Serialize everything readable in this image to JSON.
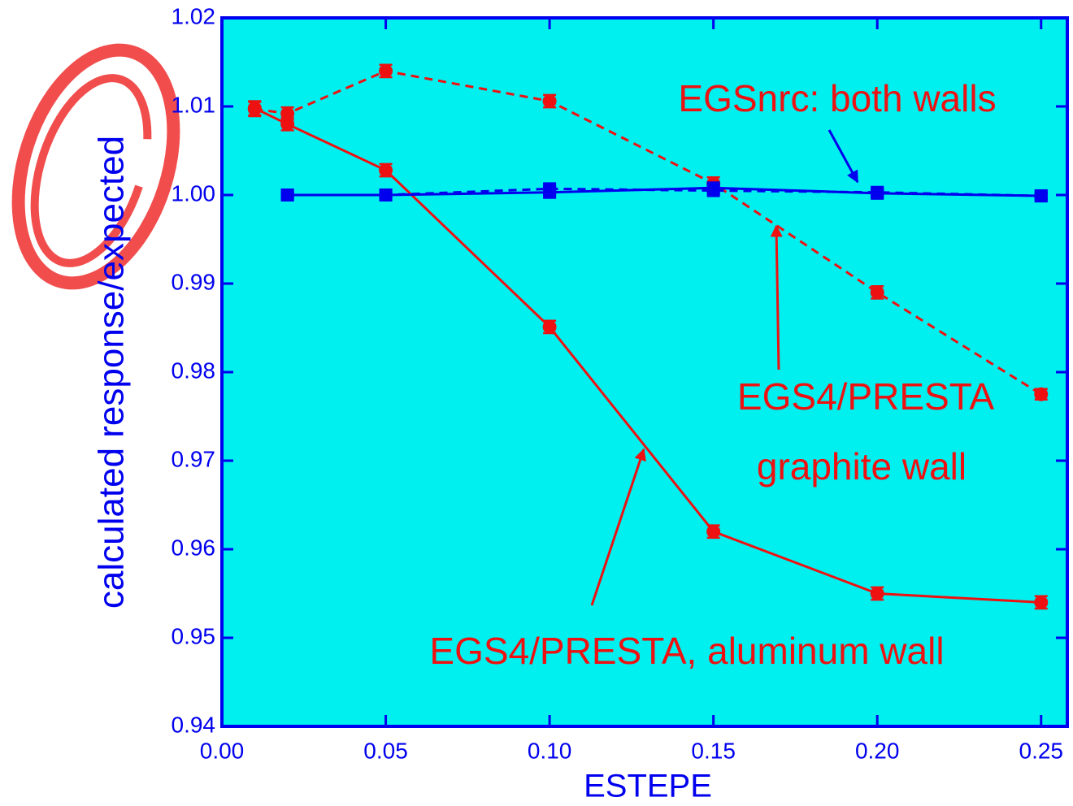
{
  "chart_data": {
    "type": "line",
    "x_label": "ESTEPE",
    "y_label": "calculated response/expected",
    "xlim": [
      0,
      0.258
    ],
    "ylim": [
      0.94,
      1.02
    ],
    "xticks": [
      {
        "value": 0,
        "label": "0.00"
      },
      0.05,
      {
        "value": 0.1,
        "label": "0.10"
      },
      0.15,
      {
        "value": 0.2,
        "label": "0.20"
      },
      0.25
    ],
    "yticks": [
      0.94,
      0.95,
      0.96,
      0.97,
      0.98,
      0.99,
      {
        "value": 1,
        "label": "1.00"
      },
      1.01,
      1.02
    ],
    "background": "#00f0f0",
    "series": [
      {
        "color": "#ee1111",
        "dashed": false,
        "marker": "circle",
        "x": [
          0.01,
          0.02,
          0.05,
          0.1,
          0.15,
          0.2,
          0.25
        ],
        "values": [
          1.0098,
          1.008,
          1.0028,
          0.9851,
          0.962,
          0.955,
          0.954
        ],
        "errors": [
          0.0008,
          0.0007,
          0.0007,
          0.0007,
          0.0007,
          0.0007,
          0.0007
        ]
      },
      {
        "color": "#ee1111",
        "dashed": true,
        "marker": "circle",
        "x": [
          0.01,
          0.02,
          0.05,
          0.1,
          0.15,
          0.2,
          0.25
        ],
        "values": [
          1.0097,
          1.0092,
          1.014,
          1.0106,
          1.0013,
          0.989,
          0.9775
        ],
        "errors": [
          0.0008,
          0.0007,
          0.0007,
          0.0007,
          0.0007,
          0.0007,
          0.0006
        ]
      },
      {
        "color": "#0000ee",
        "dashed": false,
        "marker": "square",
        "x": [
          0.02,
          0.05,
          0.1,
          0.15,
          0.2,
          0.25
        ],
        "values": [
          1.0,
          1.0,
          1.0003,
          1.0008,
          1.0002,
          0.9999
        ],
        "errors": [
          0.0003,
          0.0003,
          0.0003,
          0.0003,
          0.0003,
          0.0003
        ]
      },
      {
        "color": "#0000ee",
        "dashed": true,
        "marker": "square",
        "x": [
          0.02,
          0.05,
          0.1,
          0.15,
          0.2,
          0.25
        ],
        "values": [
          1.0,
          1.0,
          1.0007,
          1.0005,
          1.0003,
          0.9999
        ],
        "errors": [
          0.0003,
          0.0003,
          0.0003,
          0.0003,
          0.0003,
          0.0003
        ]
      }
    ],
    "annotations": [
      "EGSnrc: both walls",
      "EGS4/PRESTA",
      "graphite wall",
      "EGS4/PRESTA, aluminum wall"
    ]
  }
}
